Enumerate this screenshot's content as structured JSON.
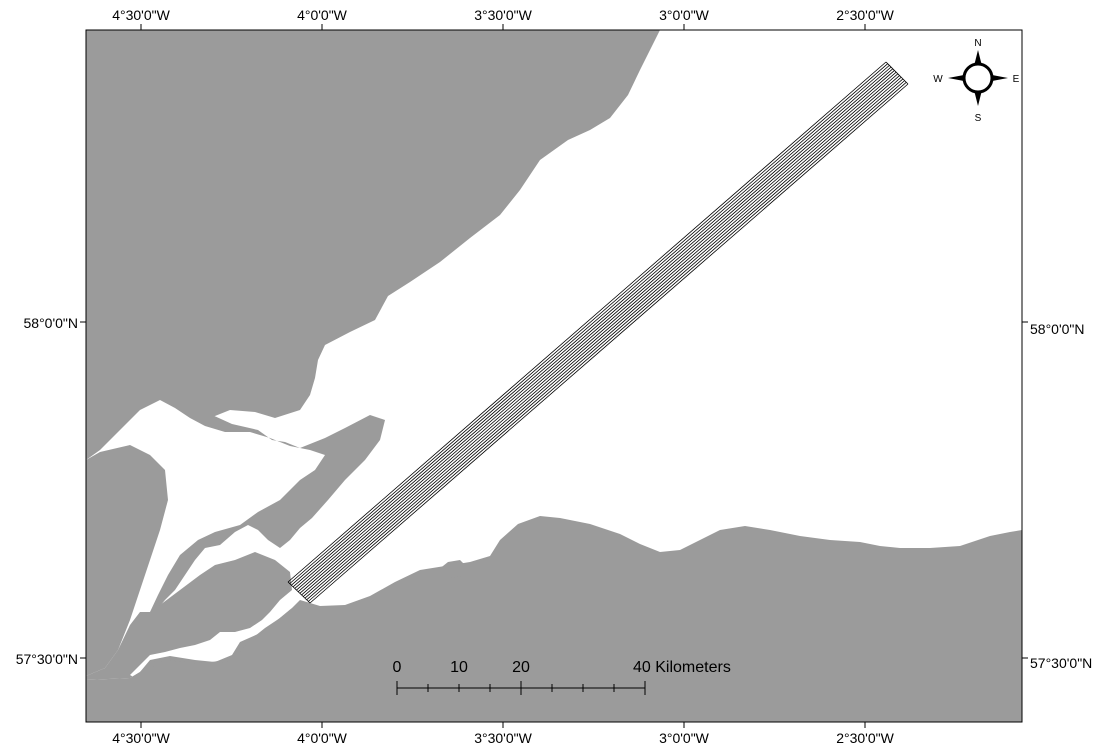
{
  "map": {
    "graticule": {
      "top_labels": [
        "4°30'0\"W",
        "4°0'0\"W",
        "3°30'0\"W",
        "3°0'0\"W",
        "2°30'0\"W"
      ],
      "bottom_labels": [
        "4°30'0\"W",
        "4°0'0\"W",
        "3°30'0\"W",
        "3°0'0\"W",
        "2°30'0\"W"
      ],
      "left_labels": [
        "58°0'0\"N",
        "57°30'0\"N"
      ],
      "right_labels": [
        "58°0'0\"N",
        "57°30'0\"N"
      ]
    },
    "compass": {
      "north": "N",
      "south": "S",
      "east": "E",
      "west": "W"
    },
    "scale_bar": {
      "labels": [
        "0",
        "10",
        "20",
        "40 Kilometers"
      ]
    },
    "colors": {
      "land": "#9b9b9b",
      "water": "#ffffff",
      "frame": "#000000",
      "transect_lines": "#000000"
    },
    "transect_line_count": 14
  }
}
